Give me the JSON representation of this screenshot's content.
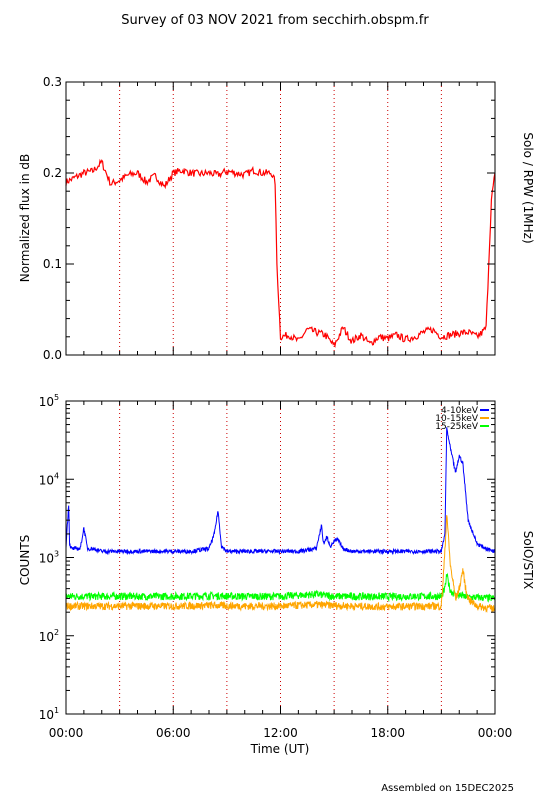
{
  "page_title": "Survey of 03 NOV 2021 from secchirh.obspm.fr",
  "footer": "Assembled on 15DEC2025",
  "time_axis": {
    "label": "Time (UT)",
    "ticks": [
      "00:00",
      "06:00",
      "12:00",
      "18:00",
      "00:00"
    ],
    "tick_hours": [
      0,
      6,
      12,
      18,
      24
    ],
    "range_hours": [
      0,
      24
    ],
    "guide_hours": [
      3,
      6,
      9,
      12,
      15,
      18,
      21
    ]
  },
  "chart_data": [
    {
      "type": "line",
      "ylabel": "Normalized flux in dB",
      "side_label": "Solo / RPW (1MHz)",
      "ylim": [
        0,
        0.3
      ],
      "yticks": [
        "0.0",
        "0.1",
        "0.2",
        "0.3"
      ],
      "ytick_values": [
        0,
        0.1,
        0.2,
        0.3
      ],
      "series": [
        {
          "color": "#ff0000",
          "x": [
            0,
            0.5,
            1.0,
            1.5,
            2.0,
            2.5,
            3.0,
            3.5,
            4.0,
            4.5,
            5.0,
            5.5,
            6.0,
            6.5,
            7.0,
            7.5,
            8.0,
            8.5,
            9.0,
            9.5,
            10.0,
            10.5,
            11.0,
            11.5,
            11.7,
            11.8,
            12.0,
            12.5,
            13.0,
            13.5,
            14.0,
            14.5,
            15.0,
            15.5,
            16.0,
            16.5,
            17.0,
            17.5,
            18.0,
            18.5,
            19.0,
            19.5,
            20.0,
            20.5,
            21.0,
            21.5,
            22.0,
            22.5,
            23.0,
            23.3,
            23.5,
            23.8,
            24.0
          ],
          "y": [
            0.19,
            0.195,
            0.2,
            0.202,
            0.212,
            0.188,
            0.192,
            0.198,
            0.2,
            0.19,
            0.197,
            0.185,
            0.2,
            0.203,
            0.2,
            0.199,
            0.2,
            0.198,
            0.202,
            0.2,
            0.198,
            0.203,
            0.2,
            0.2,
            0.19,
            0.1,
            0.02,
            0.022,
            0.015,
            0.028,
            0.025,
            0.022,
            0.01,
            0.03,
            0.015,
            0.022,
            0.012,
            0.02,
            0.018,
            0.022,
            0.017,
            0.02,
            0.025,
            0.028,
            0.02,
            0.022,
            0.024,
            0.025,
            0.02,
            0.025,
            0.03,
            0.17,
            0.2
          ]
        }
      ]
    },
    {
      "type": "line",
      "ylabel": "COUNTS",
      "side_label": "SolO/STIX",
      "yscale": "log",
      "ylim": [
        10,
        100000
      ],
      "yticks": [
        "10",
        "10",
        "10",
        "10",
        "10"
      ],
      "ytick_exponents": [
        "1",
        "2",
        "3",
        "4",
        "5"
      ],
      "ytick_values": [
        10,
        100,
        1000,
        10000,
        100000
      ],
      "legend_position": "top-right",
      "series": [
        {
          "name": "4-10keV",
          "color": "#0000ff",
          "x": [
            0,
            0.15,
            0.2,
            0.3,
            0.5,
            0.8,
            1.0,
            1.2,
            1.5,
            2.0,
            3.0,
            4.0,
            5.0,
            6.0,
            7.0,
            8.0,
            8.3,
            8.5,
            8.7,
            9.0,
            10.0,
            11.0,
            12.0,
            13.0,
            14.0,
            14.3,
            14.4,
            14.6,
            14.8,
            15.0,
            15.2,
            15.5,
            16.0,
            17.0,
            18.0,
            19.0,
            20.0,
            21.0,
            21.2,
            21.3,
            21.5,
            21.8,
            22.0,
            22.2,
            22.5,
            23.0,
            23.5,
            24.0
          ],
          "y": [
            1400,
            4800,
            1500,
            1300,
            1300,
            1300,
            2400,
            1300,
            1300,
            1200,
            1200,
            1200,
            1200,
            1200,
            1200,
            1300,
            2000,
            4000,
            1400,
            1200,
            1200,
            1200,
            1200,
            1200,
            1300,
            2600,
            1500,
            1800,
            1400,
            1600,
            1700,
            1300,
            1200,
            1200,
            1200,
            1200,
            1200,
            1200,
            2000,
            45000,
            25000,
            12000,
            20000,
            16000,
            3000,
            1500,
            1300,
            1200
          ]
        },
        {
          "name": "10-15keV",
          "color": "#ffa500",
          "x": [
            0,
            2,
            4,
            6,
            8,
            10,
            12,
            14,
            16,
            18,
            20,
            21.0,
            21.2,
            21.3,
            21.5,
            21.8,
            22.0,
            22.2,
            22.4,
            22.6,
            23.0,
            24.0
          ],
          "y": [
            240,
            240,
            240,
            240,
            245,
            240,
            240,
            250,
            240,
            235,
            240,
            240,
            1200,
            3800,
            800,
            300,
            400,
            700,
            350,
            280,
            240,
            220
          ]
        },
        {
          "name": "15-25keV",
          "color": "#00ff00",
          "x": [
            0,
            2,
            4,
            6,
            8,
            10,
            12,
            14,
            15,
            16,
            18,
            20,
            21.0,
            21.2,
            21.3,
            21.5,
            21.8,
            22.0,
            22.5,
            23.0,
            24.0
          ],
          "y": [
            320,
            320,
            320,
            320,
            325,
            320,
            320,
            340,
            320,
            320,
            318,
            320,
            320,
            400,
            600,
            380,
            330,
            330,
            310,
            310,
            300
          ]
        }
      ]
    }
  ]
}
